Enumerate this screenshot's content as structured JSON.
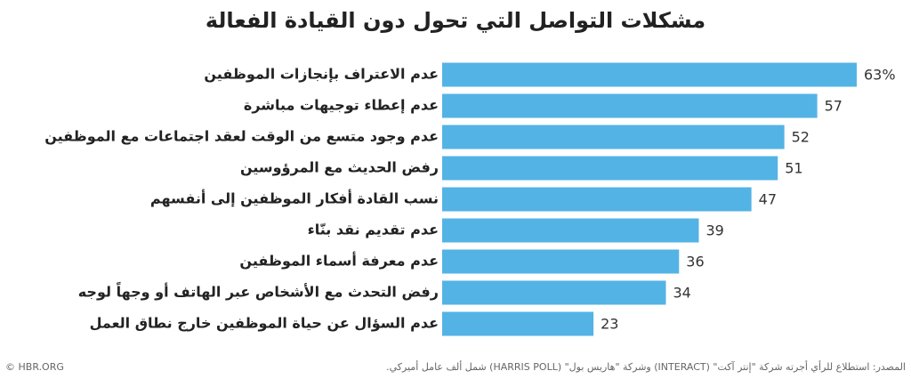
{
  "chart_data": {
    "type": "bar",
    "orientation": "horizontal",
    "title": "مشكلات التواصل التي تحول دون القيادة الفعالة",
    "categories": [
      "عدم الاعتراف بإنجازات الموظفين",
      "عدم إعطاء توجيهات مباشرة",
      "عدم وجود متسع من الوقت لعقد اجتماعات مع الموظفين",
      "رفض الحديث مع المرؤوسين",
      "نسب القادة أفكار الموظفين إلى أنفسهم",
      "عدم تقديم نقد بنّاء",
      "عدم معرفة أسماء الموظفين",
      "رفض التحدث مع الأشخاص عبر الهاتف أو وجهاً لوجه",
      "عدم السؤال عن حياة الموظفين خارج نطاق العمل"
    ],
    "values": [
      63,
      57,
      52,
      51,
      47,
      39,
      36,
      34,
      23
    ],
    "value_labels": [
      "63%",
      "57",
      "52",
      "51",
      "47",
      "39",
      "36",
      "34",
      "23"
    ],
    "color": "#53b3e5",
    "source": "المصدر: استطلاع للرأي أجرته شركة \"إنتر آكت\" (INTERACT) وشركة \"هاريس بول\" (HARRIS POLL) شمل ألف عامل أميركي.",
    "credit": "© HBR.ORG"
  }
}
